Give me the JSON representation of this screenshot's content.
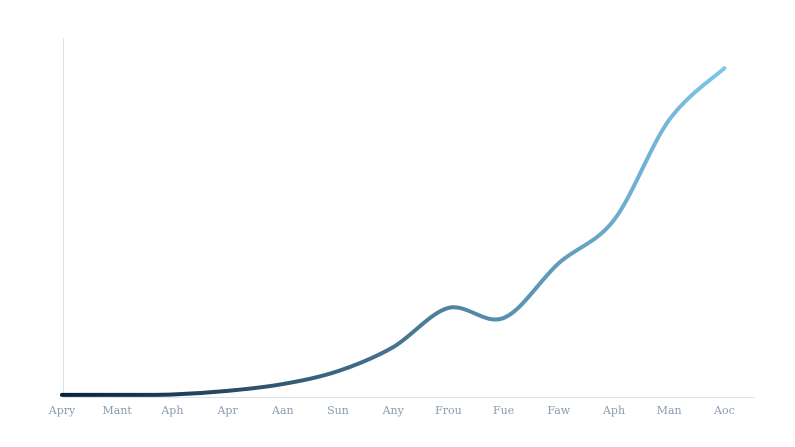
{
  "chart_data": {
    "type": "line",
    "categories": [
      "Apry",
      "Mant",
      "Aph",
      "Apr",
      "Aan",
      "Sun",
      "Any",
      "Frou",
      "Fue",
      "Faw",
      "Aph",
      "Man",
      "Aoc"
    ],
    "values": [
      0.6,
      0.6,
      0.7,
      1.7,
      3.6,
      7.2,
      13.9,
      24.8,
      22,
      37.3,
      49.3,
      77.2,
      91.6
    ],
    "ylim": [
      0,
      100
    ],
    "gradient": [
      "#0b2239",
      "#7fc6e8"
    ]
  }
}
